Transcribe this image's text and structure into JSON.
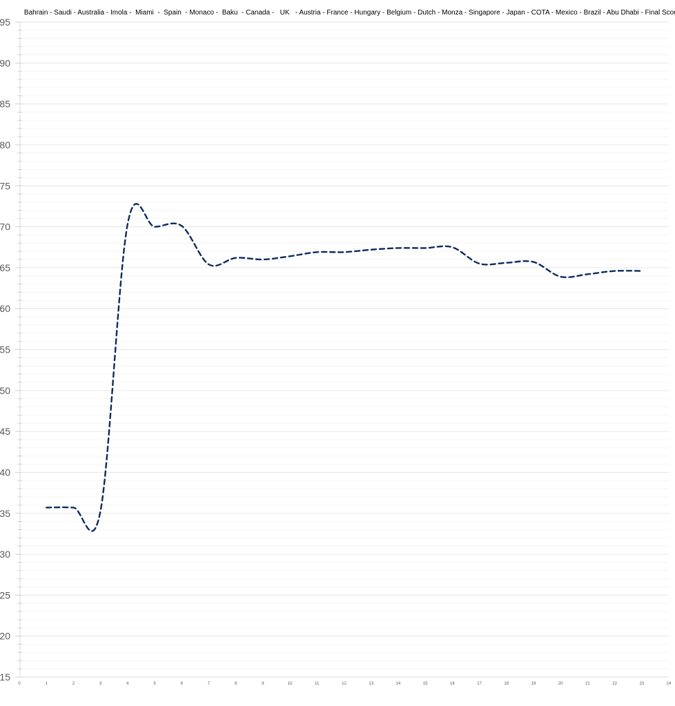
{
  "chart_data": {
    "type": "line",
    "title": "Bahrain - Saudi - Australia - Imola -  Miami  -  Spain  - Monaco -  Baku  - Canada -   UK   - Austria - France - Hungary - Belgium - Dutch - Monza - Singapore - Japan - COTA - Mexico - Brazil - Abu Dhabi - Final Score",
    "xlabel": "",
    "ylabel": "",
    "xlim": [
      0,
      24
    ],
    "ylim": [
      15,
      95
    ],
    "x_ticks": [
      0,
      1,
      2,
      3,
      4,
      5,
      6,
      7,
      8,
      9,
      10,
      11,
      12,
      13,
      14,
      15,
      16,
      17,
      18,
      19,
      20,
      21,
      22,
      23,
      24
    ],
    "y_ticks": [
      15,
      20,
      25,
      30,
      35,
      40,
      45,
      50,
      55,
      60,
      65,
      70,
      75,
      80,
      85,
      90,
      95
    ],
    "grid": {
      "major": true,
      "minor": true
    },
    "smoothed": true,
    "line_style": "dashed",
    "series": [
      {
        "color": "#0e2a5e",
        "x": [
          1,
          2,
          3,
          4,
          5,
          6,
          7,
          8,
          9,
          10,
          11,
          12,
          13,
          14,
          15,
          16,
          17,
          18,
          19,
          20,
          21,
          22,
          23
        ],
        "values": [
          35.7,
          35.7,
          35.3,
          70.3,
          70.0,
          70.1,
          65.4,
          66.2,
          66.0,
          66.4,
          66.9,
          66.9,
          67.2,
          67.4,
          67.4,
          67.5,
          65.5,
          65.6,
          65.7,
          63.9,
          64.2,
          64.6,
          64.6
        ]
      }
    ]
  }
}
